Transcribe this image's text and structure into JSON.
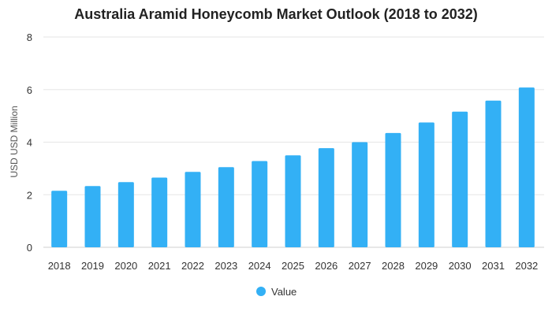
{
  "chart_data": {
    "type": "bar",
    "title": "Australia Aramid Honeycomb Market Outlook (2018 to 2032)",
    "xlabel": "",
    "ylabel": "USD USD Million",
    "ylim": [
      0,
      8
    ],
    "yticks": [
      0,
      2,
      4,
      6,
      8
    ],
    "grid": true,
    "legend_position": "bottom",
    "categories": [
      "2018",
      "2019",
      "2020",
      "2021",
      "2022",
      "2023",
      "2024",
      "2025",
      "2026",
      "2027",
      "2028",
      "2029",
      "2030",
      "2031",
      "2032"
    ],
    "series": [
      {
        "name": "Value",
        "color": "#33b0f5",
        "values": [
          2.15,
          2.33,
          2.48,
          2.65,
          2.87,
          3.05,
          3.28,
          3.5,
          3.77,
          4.0,
          4.35,
          4.75,
          5.16,
          5.58,
          6.08
        ]
      }
    ]
  }
}
